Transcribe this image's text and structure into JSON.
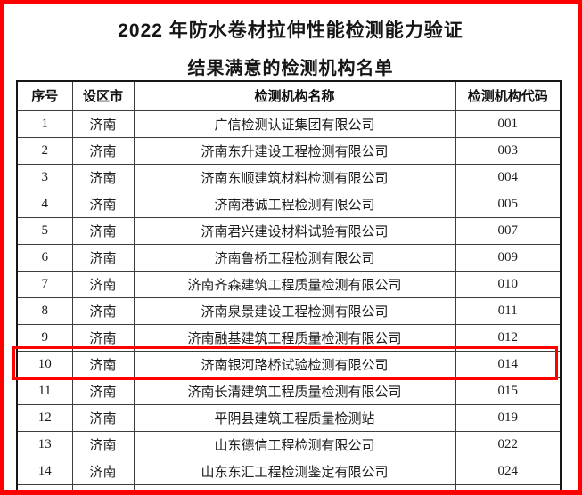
{
  "page": {
    "title": "2022 年防水卷材拉伸性能检测能力验证",
    "subtitle": "结果满意的检测机构名单",
    "border_color": "#ff0000"
  },
  "table": {
    "headers": [
      "序号",
      "设区市",
      "检测机构名称",
      "检测机构代码"
    ],
    "rows": [
      {
        "no": "1",
        "city": "济南",
        "name": "广信检测认证集团有限公司",
        "code": "001"
      },
      {
        "no": "2",
        "city": "济南",
        "name": "济南东升建设工程检测有限公司",
        "code": "003"
      },
      {
        "no": "3",
        "city": "济南",
        "name": "济南东顺建筑材料检测有限公司",
        "code": "004"
      },
      {
        "no": "4",
        "city": "济南",
        "name": "济南港诚工程检测有限公司",
        "code": "005"
      },
      {
        "no": "5",
        "city": "济南",
        "name": "济南君兴建设材料试验有限公司",
        "code": "007"
      },
      {
        "no": "6",
        "city": "济南",
        "name": "济南鲁桥工程检测有限公司",
        "code": "009"
      },
      {
        "no": "7",
        "city": "济南",
        "name": "济南齐森建筑工程质量检测有限公司",
        "code": "010"
      },
      {
        "no": "8",
        "city": "济南",
        "name": "济南泉景建设工程检测有限公司",
        "code": "011"
      },
      {
        "no": "9",
        "city": "济南",
        "name": "济南融基建筑工程质量检测有限公司",
        "code": "012"
      },
      {
        "no": "10",
        "city": "济南",
        "name": "济南银河路桥试验检测有限公司",
        "code": "014"
      },
      {
        "no": "11",
        "city": "济南",
        "name": "济南长清建筑工程质量检测有限公司",
        "code": "015"
      },
      {
        "no": "12",
        "city": "济南",
        "name": "平阴县建筑工程质量检测站",
        "code": "019"
      },
      {
        "no": "13",
        "city": "济南",
        "name": "山东德信工程检测有限公司",
        "code": "022"
      },
      {
        "no": "14",
        "city": "济南",
        "name": "山东东汇工程检测鉴定有限公司",
        "code": "024"
      }
    ],
    "highlighted_row_no": "10",
    "highlight_color": "#ff0000"
  }
}
